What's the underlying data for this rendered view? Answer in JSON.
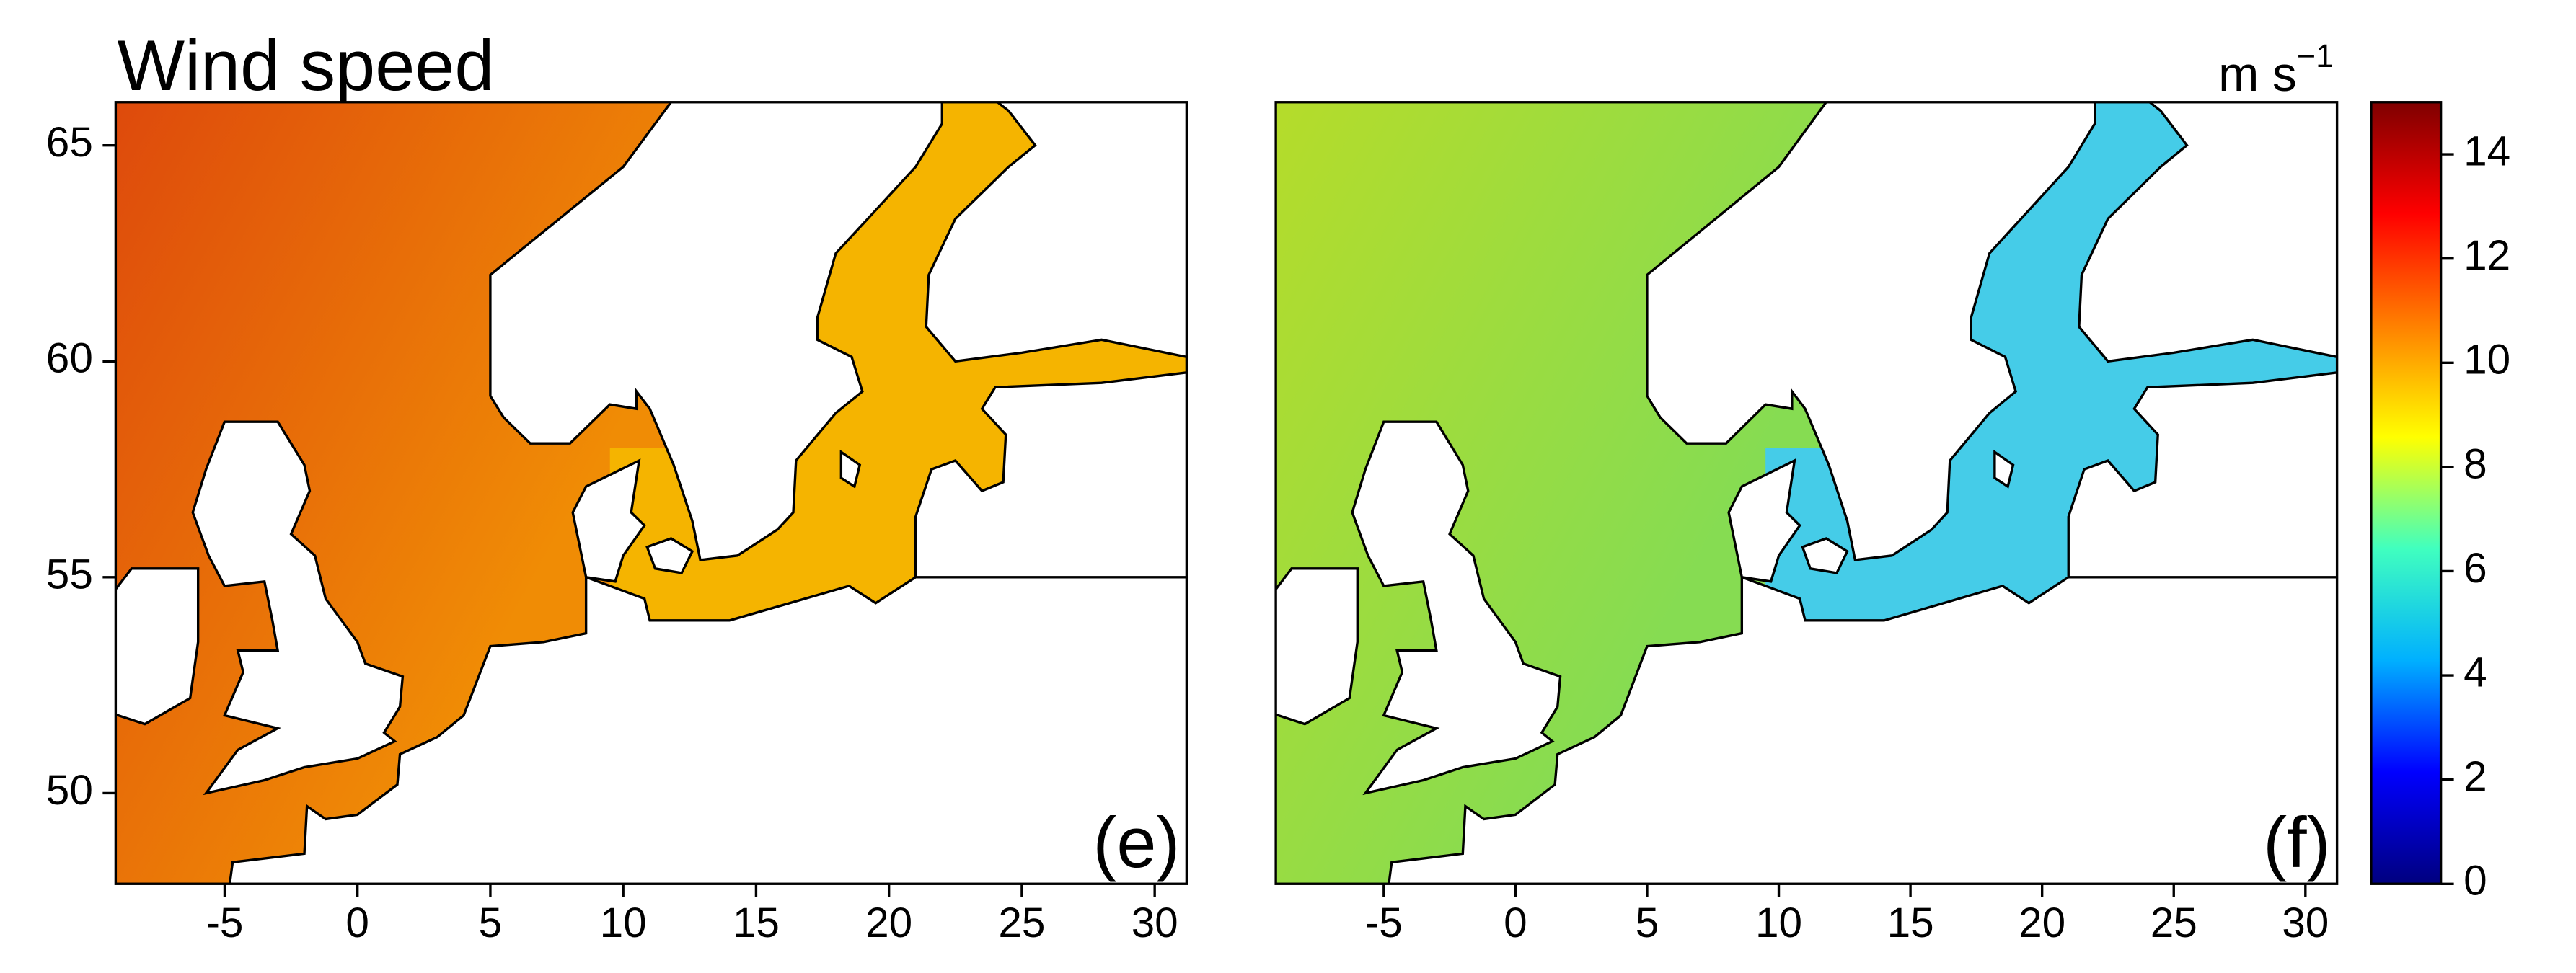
{
  "title": "Wind speed",
  "unit": {
    "base": "m s",
    "exponent": "−1"
  },
  "panels": [
    {
      "label": "(e)",
      "xlim": [
        -9.1,
        31.2
      ],
      "ylim": [
        47.9,
        66
      ],
      "xticks": [
        -5,
        0,
        5,
        10,
        15,
        20,
        25,
        30
      ],
      "yticks": [
        50,
        55,
        60,
        65
      ],
      "sea_colors": [
        "#de4a0c",
        "#f08c05",
        "#f5b400"
      ]
    },
    {
      "label": "(f)",
      "xlim": [
        -9.1,
        31.2
      ],
      "ylim": [
        47.9,
        66
      ],
      "xticks": [
        -5,
        0,
        5,
        10,
        15,
        20,
        25,
        30
      ],
      "sea_colors": [
        "#b5dc2a",
        "#86dc52",
        "#45cce8"
      ]
    }
  ],
  "colorbar": {
    "lim": [
      0,
      15
    ],
    "ticks": [
      0,
      2,
      4,
      6,
      8,
      10,
      12,
      14
    ],
    "colors": [
      "#00007f",
      "#0000ff",
      "#00b0ff",
      "#40ffbf",
      "#ffff00",
      "#ff8000",
      "#ff0000",
      "#7f0000"
    ]
  }
}
